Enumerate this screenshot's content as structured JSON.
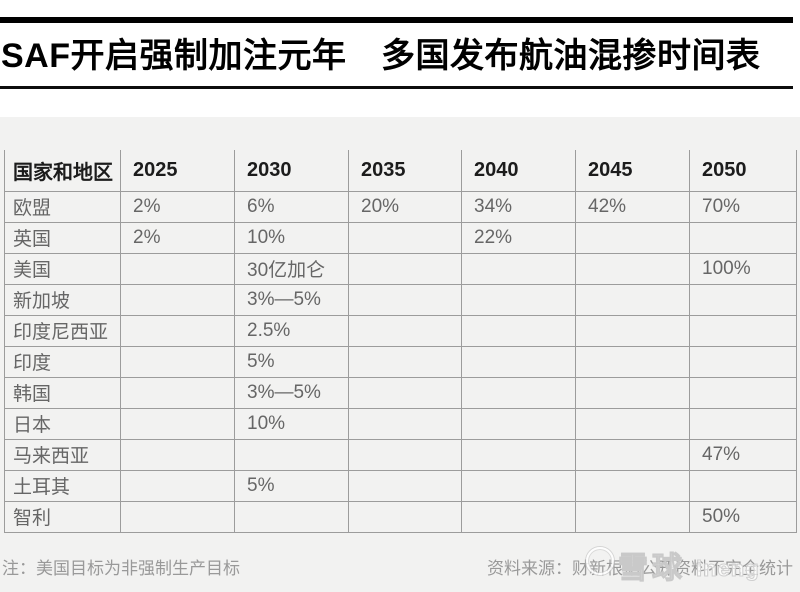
{
  "header": {
    "title": "SAF开启强制加注元年　多国发布航油混掺时间表"
  },
  "chart_data": {
    "type": "table",
    "title": "SAF开启强制加注元年　多国发布航油混掺时间表",
    "columns": [
      "国家和地区",
      "2025",
      "2030",
      "2035",
      "2040",
      "2045",
      "2050"
    ],
    "rows": [
      [
        "欧盟",
        "2%",
        "6%",
        "20%",
        "34%",
        "42%",
        "70%"
      ],
      [
        "英国",
        "2%",
        "10%",
        "",
        "22%",
        "",
        ""
      ],
      [
        "美国",
        "",
        "30亿加仑",
        "",
        "",
        "",
        "100%"
      ],
      [
        "新加坡",
        "",
        "3%—5%",
        "",
        "",
        "",
        ""
      ],
      [
        "印度尼西亚",
        "",
        "2.5%",
        "",
        "",
        "",
        ""
      ],
      [
        "印度",
        "",
        "5%",
        "",
        "",
        "",
        ""
      ],
      [
        "韩国",
        "",
        "3%—5%",
        "",
        "",
        "",
        ""
      ],
      [
        "日本",
        "",
        "10%",
        "",
        "",
        "",
        ""
      ],
      [
        "马来西亚",
        "",
        "",
        "",
        "",
        "",
        "47%"
      ],
      [
        "土耳其",
        "",
        "5%",
        "",
        "",
        "",
        ""
      ],
      [
        "智利",
        "",
        "",
        "",
        "",
        "",
        "50%"
      ]
    ],
    "note": "注：美国目标为非强制生产目标",
    "source": "资料来源：财新根据公开资料不完全统计"
  },
  "footer": {
    "note": "注：美国目标为非强制生产目标",
    "source": "资料来源：财新根据公开资料不完全统计"
  },
  "watermark": {
    "text": "雪球",
    "suffix": "ineng"
  },
  "colors": {
    "accent_bar": "#000000",
    "panel_bg": "#f2f2f1",
    "grid_line": "#9c9c9c",
    "cell_text": "#666666",
    "header_text": "#1c1c1c",
    "note_text": "#999999"
  }
}
